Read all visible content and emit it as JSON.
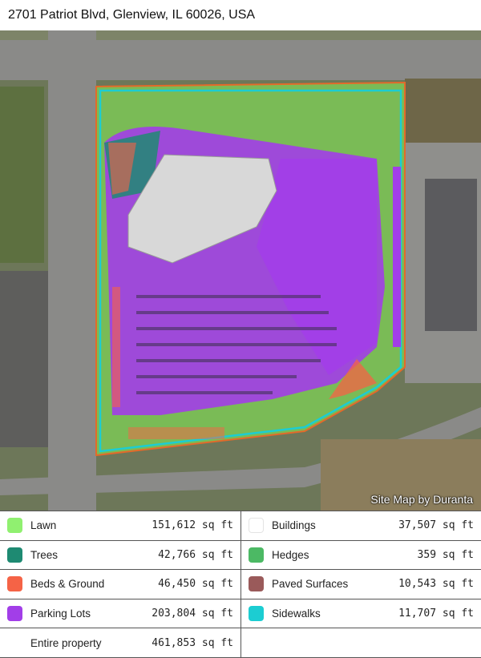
{
  "header": {
    "address": "2701 Patriot Blvd, Glenview, IL 60026, USA"
  },
  "map": {
    "credit": "Site Map by Duranta"
  },
  "legend": {
    "items": [
      {
        "label": "Lawn",
        "value": "151,612 sq ft",
        "color": "#90f070"
      },
      {
        "label": "Buildings",
        "value": "37,507 sq ft",
        "color": "#ffffff"
      },
      {
        "label": "Trees",
        "value": "42,766 sq ft",
        "color": "#1e8a72"
      },
      {
        "label": "Hedges",
        "value": "359 sq ft",
        "color": "#4cb964"
      },
      {
        "label": "Beds & Ground",
        "value": "46,450 sq ft",
        "color": "#f56346"
      },
      {
        "label": "Paved Surfaces",
        "value": "10,543 sq ft",
        "color": "#9a5a5a"
      },
      {
        "label": "Parking Lots",
        "value": "203,804 sq ft",
        "color": "#a23ee8"
      },
      {
        "label": "Sidewalks",
        "value": "11,707 sq ft",
        "color": "#1ccdd2"
      }
    ],
    "total": {
      "label": "Entire property",
      "value": "461,853 sq ft"
    }
  }
}
